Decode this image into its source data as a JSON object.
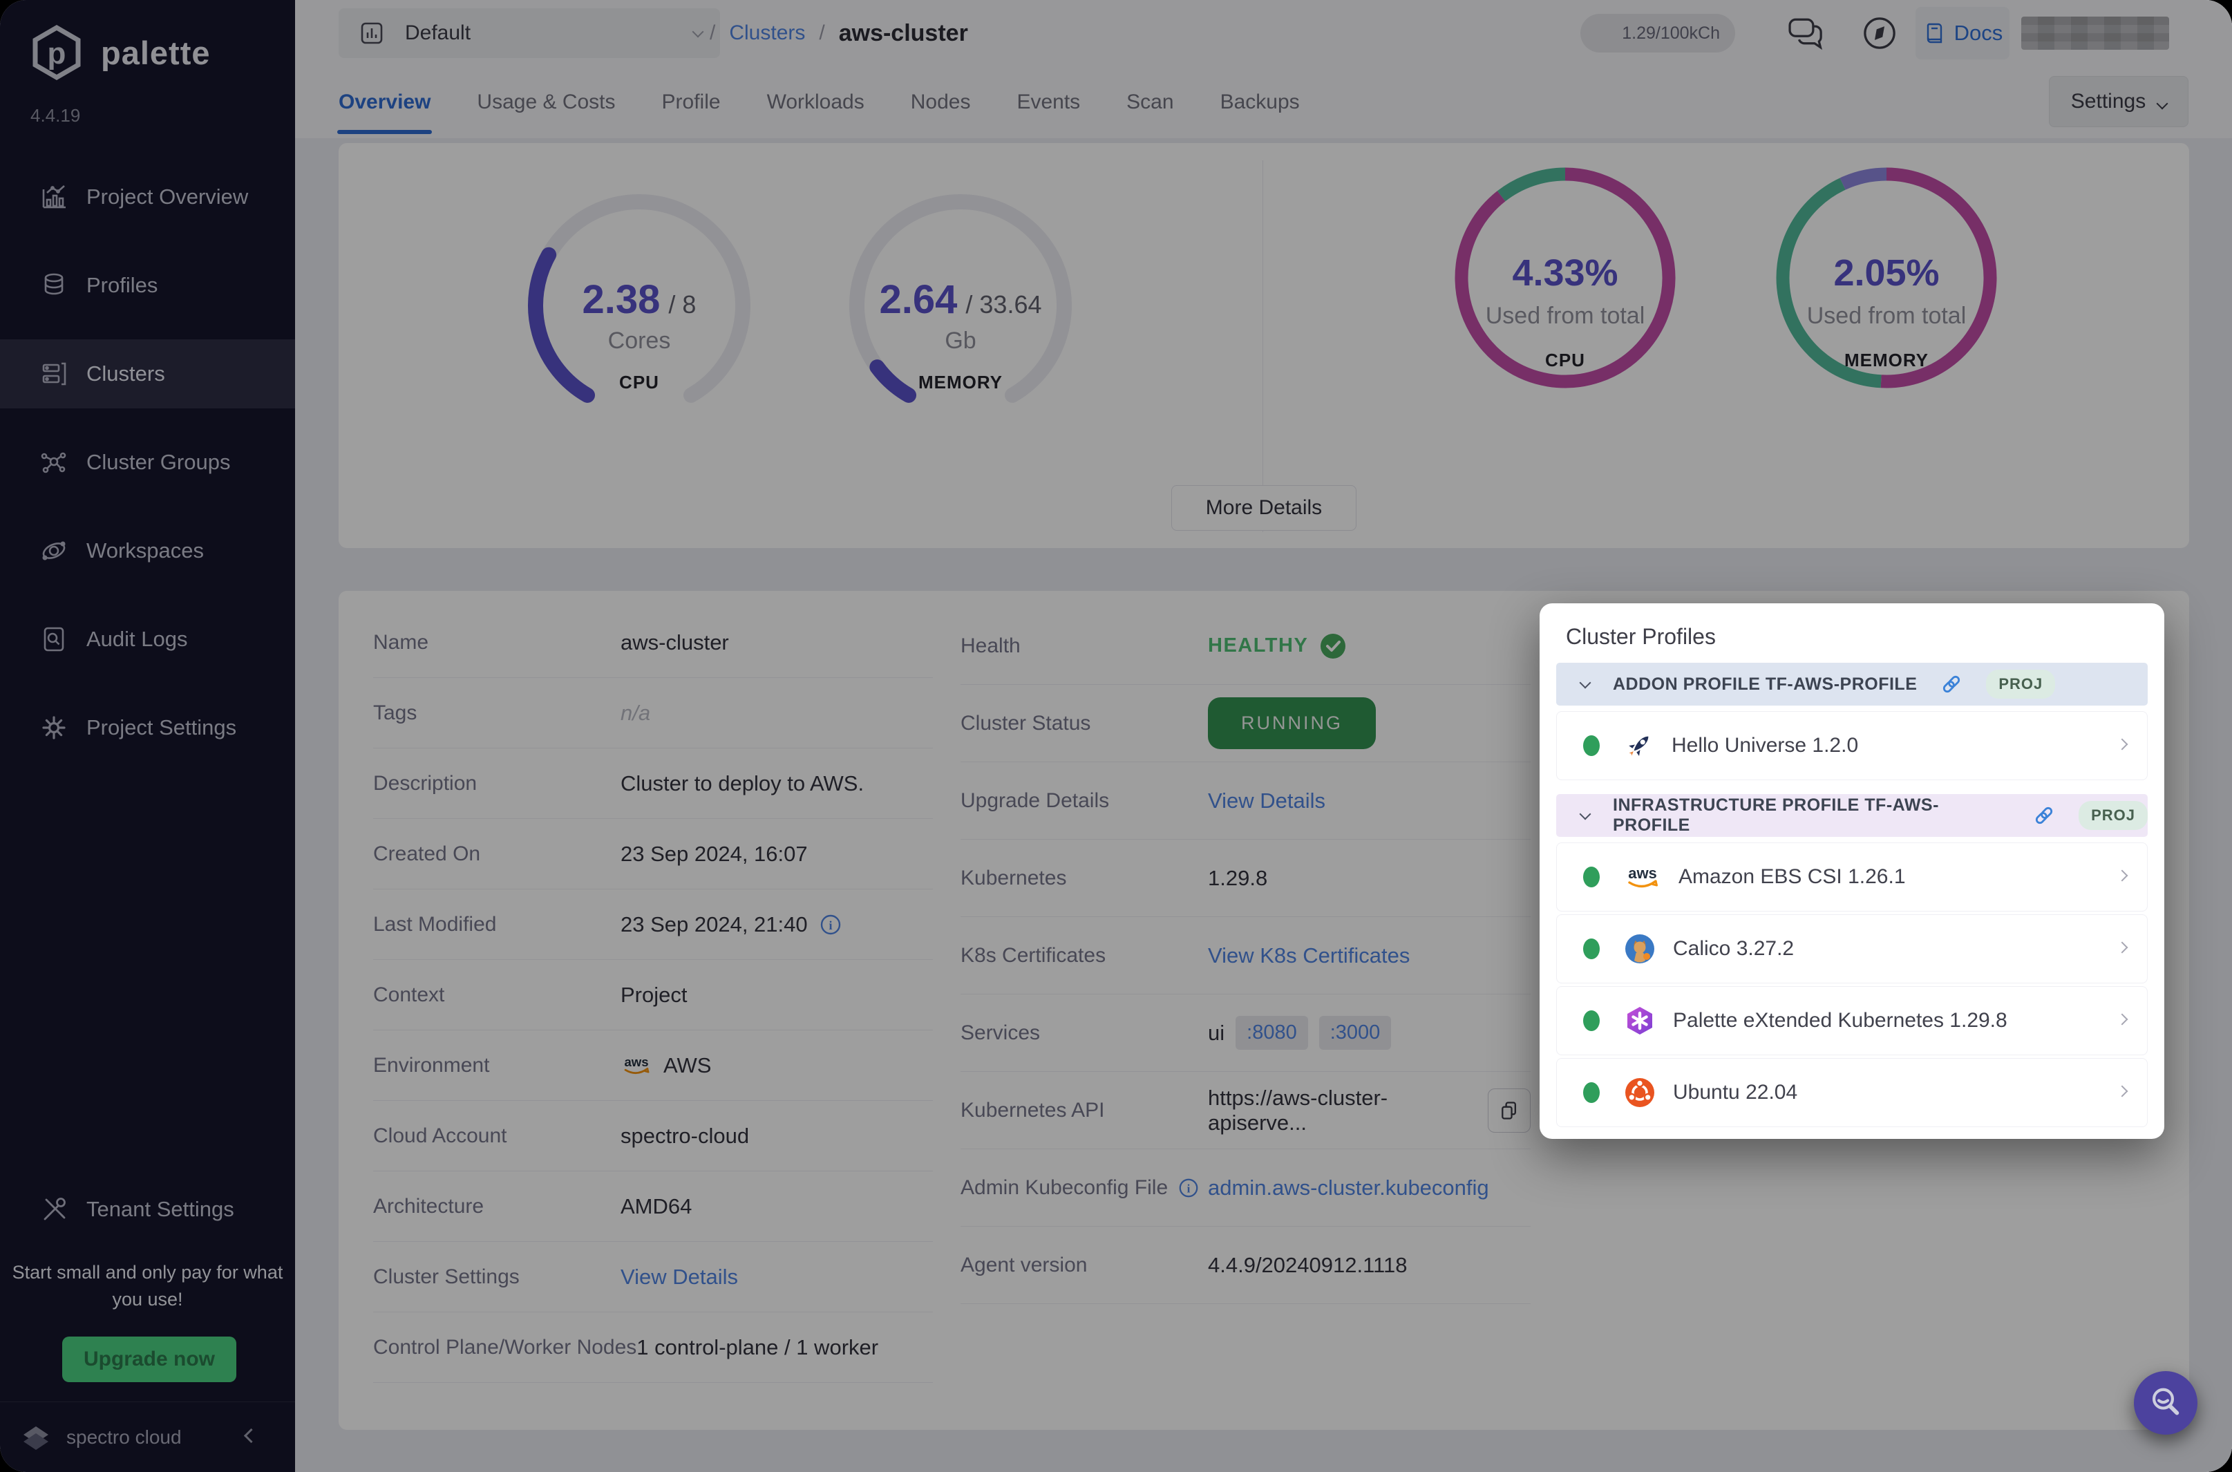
{
  "app": {
    "brand": "palette",
    "version": "4.4.19"
  },
  "sidebar": {
    "items": [
      {
        "label": "Project Overview",
        "icon": "project-overview-icon"
      },
      {
        "label": "Profiles",
        "icon": "profiles-icon"
      },
      {
        "label": "Clusters",
        "icon": "clusters-icon"
      },
      {
        "label": "Cluster Groups",
        "icon": "cluster-groups-icon"
      },
      {
        "label": "Workspaces",
        "icon": "workspaces-icon"
      },
      {
        "label": "Audit Logs",
        "icon": "audit-logs-icon"
      },
      {
        "label": "Project Settings",
        "icon": "project-settings-icon"
      }
    ],
    "active_item": "Clusters",
    "tenant": {
      "label": "Tenant Settings",
      "icon": "tenant-settings-icon"
    },
    "promo": {
      "text": "Start small and only pay for what you use!",
      "cta": "Upgrade now"
    },
    "footer": {
      "brand": "spectro cloud"
    }
  },
  "topbar": {
    "project_selector": {
      "label": "Default"
    },
    "breadcrumb": {
      "sep1": "/",
      "link": "Clusters",
      "sep2": "/",
      "current": "aws-cluster"
    },
    "usage_badge": "1.29/100kCh",
    "docs": "Docs"
  },
  "tabs": {
    "items": [
      "Overview",
      "Usage & Costs",
      "Profile",
      "Workloads",
      "Nodes",
      "Events",
      "Scan",
      "Backups"
    ],
    "active": "Overview",
    "settings": "Settings"
  },
  "overview_card": {
    "more_details": "More Details"
  },
  "chart_data": [
    {
      "id": "cpu_gauge",
      "type": "gauge",
      "used": 2.38,
      "total": 8,
      "used_label": "2.38",
      "total_label": "/ 8",
      "unit": "Cores",
      "label": "CPU",
      "color": "#5a51c9",
      "track": "#ececf2"
    },
    {
      "id": "memory_gauge",
      "type": "gauge",
      "used": 2.64,
      "total": 33.64,
      "used_label": "2.64",
      "total_label": "/ 33.64",
      "unit": "Gb",
      "label": "MEMORY",
      "color": "#5a51c9",
      "track": "#ececf2"
    },
    {
      "id": "cpu_donut",
      "type": "donut",
      "percent": 4.33,
      "percent_label": "4.33%",
      "caption": "Used from total",
      "label": "CPU",
      "segments": [
        {
          "name": "total",
          "color": "#c14da6",
          "deg": 322
        },
        {
          "name": "used",
          "color": "#52b89a",
          "deg": 38
        }
      ]
    },
    {
      "id": "memory_donut",
      "type": "donut",
      "percent": 2.05,
      "percent_label": "2.05%",
      "caption": "Used from total",
      "label": "MEMORY",
      "segments": [
        {
          "name": "total",
          "color": "#c14da6",
          "deg": 183
        },
        {
          "name": "used",
          "color": "#52b89a",
          "deg": 152
        },
        {
          "name": "reserved",
          "color": "#8d86dd",
          "deg": 25
        }
      ]
    }
  ],
  "details": {
    "left": [
      {
        "label": "Name",
        "value": "aws-cluster"
      },
      {
        "label": "Tags",
        "value": "n/a"
      },
      {
        "label": "Description",
        "value": "Cluster to deploy to AWS."
      },
      {
        "label": "Created On",
        "value": "23 Sep 2024, 16:07"
      },
      {
        "label": "Last Modified",
        "value": "23 Sep 2024, 21:40"
      },
      {
        "label": "Context",
        "value": "Project"
      },
      {
        "label": "Environment",
        "value": "AWS"
      },
      {
        "label": "Cloud Account",
        "value": "spectro-cloud"
      },
      {
        "label": "Architecture",
        "value": "AMD64"
      },
      {
        "label": "Cluster Settings",
        "value": "View Details"
      },
      {
        "label": "Control Plane/Worker Nodes",
        "value": "1 control-plane / 1 worker"
      }
    ],
    "right": [
      {
        "label": "Health",
        "value": "HEALTHY"
      },
      {
        "label": "Cluster Status",
        "value": "RUNNING"
      },
      {
        "label": "Upgrade Details",
        "value": "View Details"
      },
      {
        "label": "Kubernetes",
        "value": "1.29.8"
      },
      {
        "label": "K8s Certificates",
        "value": "View K8s Certificates"
      },
      {
        "label": "Services",
        "value": "ui",
        "ports": [
          ":8080",
          ":3000"
        ]
      },
      {
        "label": "Kubernetes API",
        "value": "https://aws-cluster-apiserve..."
      },
      {
        "label": "Admin Kubeconfig File",
        "value": "admin.aws-cluster.kubeconfig"
      },
      {
        "label": "Agent version",
        "value": "4.4.9/20240912.1118"
      }
    ]
  },
  "profiles_panel": {
    "title": "Cluster Profiles",
    "sections": [
      {
        "header": "ADDON PROFILE TF-AWS-PROFILE",
        "badge": "PROJ",
        "items": [
          {
            "name": "Hello Universe 1.2.0",
            "icon": "hello-universe-rocket-icon",
            "status": "healthy"
          }
        ]
      },
      {
        "header": "INFRASTRUCTURE PROFILE TF-AWS-PROFILE",
        "badge": "PROJ",
        "items": [
          {
            "name": "Amazon EBS CSI 1.26.1",
            "icon": "aws-icon",
            "status": "healthy"
          },
          {
            "name": "Calico 3.27.2",
            "icon": "calico-icon",
            "status": "healthy"
          },
          {
            "name": "Palette eXtended Kubernetes 1.29.8",
            "icon": "palette-pxk-icon",
            "status": "healthy"
          },
          {
            "name": "Ubuntu 22.04",
            "icon": "ubuntu-icon",
            "status": "healthy"
          }
        ]
      }
    ]
  },
  "colors": {
    "accent_indigo": "#5a51c9",
    "magenta": "#c14da6",
    "teal": "#52b89a",
    "periwinkle": "#8d86dd",
    "link_blue": "#4f83e0",
    "status_green": "#2f9e5b",
    "running_green": "#329152",
    "upgrade_green": "#4bd082",
    "sidebar_bg": "#16162c"
  }
}
